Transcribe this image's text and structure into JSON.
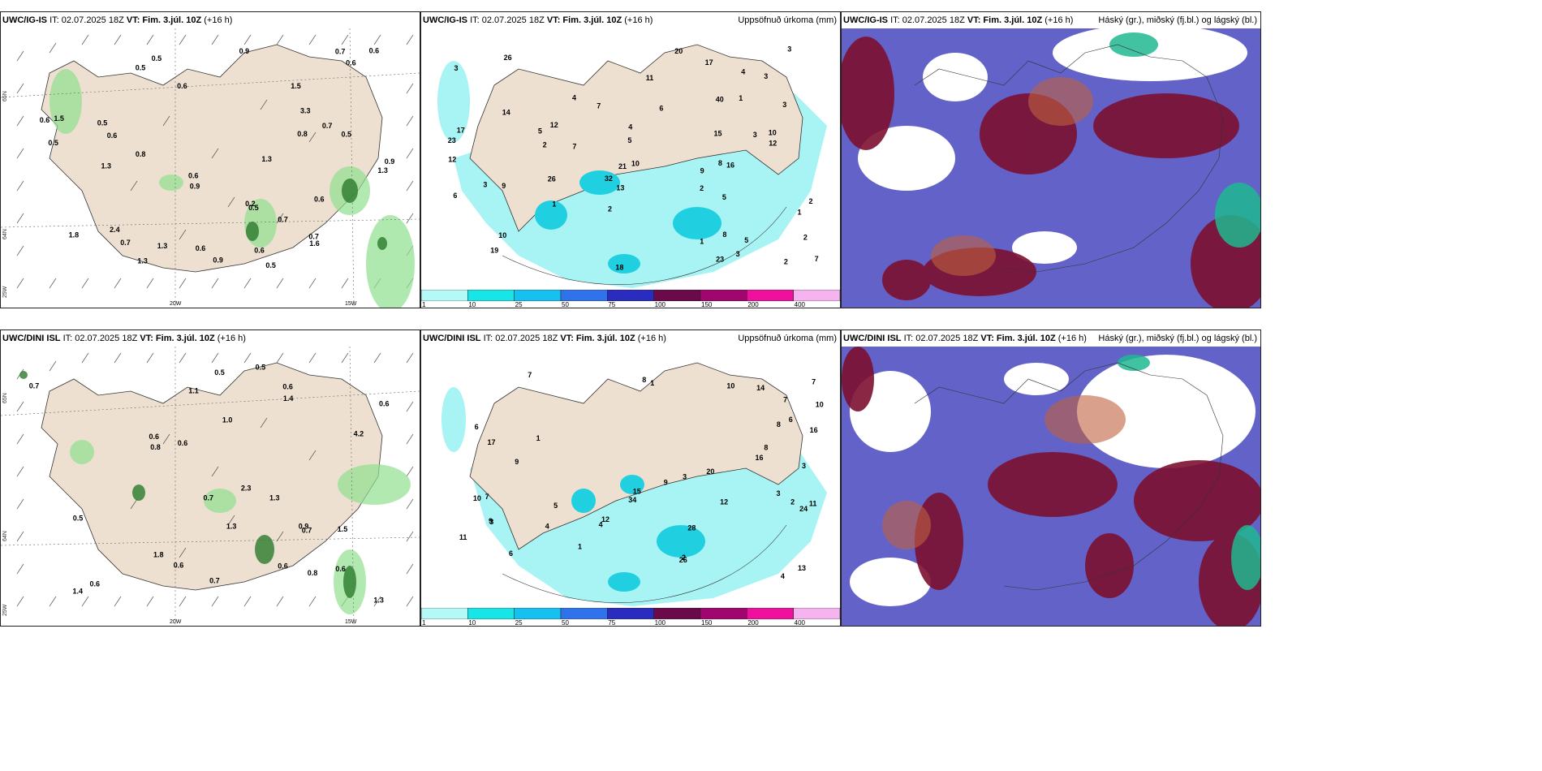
{
  "rows": [
    {
      "model": "UWC/IG-IS",
      "init": "IT: 02.07.2025 18Z",
      "vt_label": "VT:",
      "vt": "Fim. 3.júl. 10Z",
      "lead": "(+16 h)",
      "wind_numbers": [
        "0.5",
        "0.5",
        "2.4",
        "0.5",
        "0.7",
        "0.6",
        "1.3",
        "0.8",
        "0.9",
        "0.7",
        "1.8",
        "0.6",
        "0.6",
        "0.2",
        "0.8",
        "0.7",
        "0.5",
        "0.6",
        "0.6",
        "0.5",
        "0.7",
        "0.5",
        "1.3",
        "1.6",
        "1.3",
        "3.3",
        "1.3",
        "0.6",
        "0.9",
        "0.6",
        "0.7",
        "0.6",
        "1.5",
        "1.3",
        "0.5",
        "0.6",
        "0.9",
        "1.5",
        "0.9"
      ],
      "precip_numbers": [
        "2",
        "2",
        "3",
        "1",
        "1",
        "1",
        "10",
        "4",
        "2",
        "3",
        "8",
        "9",
        "6",
        "5",
        "1",
        "2",
        "3",
        "3",
        "4",
        "7",
        "13",
        "12",
        "15",
        "17",
        "12",
        "10",
        "14",
        "40",
        "7",
        "9",
        "3",
        "20",
        "17",
        "8",
        "7",
        "19",
        "6",
        "10",
        "16",
        "23",
        "32",
        "26",
        "11",
        "18",
        "23",
        "4",
        "3",
        "12",
        "21",
        "26",
        "2",
        "5",
        "5",
        "5",
        "3",
        "2"
      ]
    },
    {
      "model": "UWC/DINI ISL",
      "init": "IT: 02.07.2025 18Z",
      "vt_label": "VT:",
      "vt": "Fim. 3.júl. 10Z",
      "lead": "(+16 h)",
      "wind_numbers": [
        "1.4",
        "1.5",
        "2.3",
        "1.3",
        "1.1",
        "0.5",
        "0.6",
        "0.6",
        "0.8",
        "1.8",
        "1.3",
        "0.8",
        "0.6",
        "0.5",
        "0.6",
        "0.6",
        "0.9",
        "0.5",
        "0.7",
        "0.6",
        "0.7",
        "0.6",
        "0.7",
        "1.3",
        "0.7",
        "1.4",
        "0.6",
        "1.0",
        "4.2"
      ],
      "precip_numbers": [
        "1",
        "3",
        "6",
        "1",
        "2",
        "3",
        "4",
        "5",
        "6",
        "7",
        "8",
        "11",
        "3",
        "16",
        "3",
        "34",
        "11",
        "10",
        "9",
        "8",
        "7",
        "14",
        "13",
        "12",
        "10",
        "9",
        "8",
        "6",
        "7",
        "20",
        "24",
        "16",
        "15",
        "12",
        "17",
        "26",
        "28",
        "4",
        "4",
        "7",
        "2",
        "9",
        "10",
        "1"
      ]
    }
  ],
  "precip_title": "Uppsöfnuð úrkoma (mm)",
  "cloud_title": "Háský (gr.), miðský (fj.bl.) og lágský (bl.)",
  "colorbar": {
    "ticks": [
      "1",
      "10",
      "25",
      "50",
      "75",
      "100",
      "150",
      "200",
      "400"
    ],
    "colors": [
      "#b4f8f8",
      "#18e6e6",
      "#16c1f0",
      "#3072ec",
      "#2a2cc0",
      "#6a0a4a",
      "#a0066e",
      "#f0109e",
      "#f5b4f0"
    ]
  },
  "axes": {
    "lat": [
      "65N",
      "64N"
    ],
    "lon": [
      "20W",
      "15W",
      "25W"
    ]
  },
  "colors": {
    "land": "#ede0d1",
    "sea": "#ffffff",
    "precip_light": "#a8f4f4",
    "cloud_high": "#7c1030",
    "cloud_mid": "#5a5ac6",
    "cloud_low": "#20b890"
  }
}
